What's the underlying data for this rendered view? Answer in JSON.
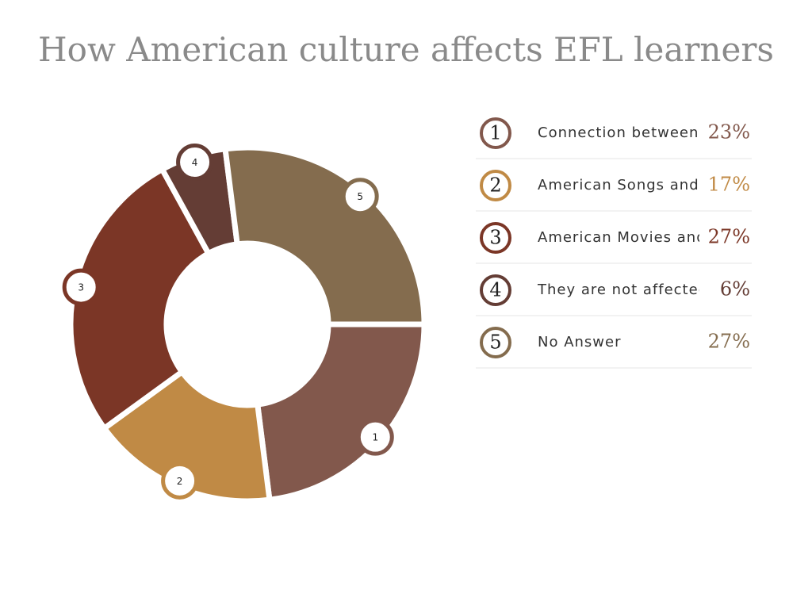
{
  "chart_data": {
    "type": "donut",
    "title": "How American culture affects EFL learners",
    "categories": [
      "Connection between I",
      "American Songs and p",
      "American Movies and",
      "They are not affected",
      "No Answer"
    ],
    "values": [
      23,
      17,
      27,
      6,
      27
    ],
    "value_labels": [
      "23%",
      "17%",
      "27%",
      "6%",
      "27%"
    ],
    "markers": [
      1,
      2,
      3,
      4,
      5
    ],
    "colors": [
      "#82584c",
      "#c08a45",
      "#7b3626",
      "#643d35",
      "#846c4e"
    ]
  }
}
